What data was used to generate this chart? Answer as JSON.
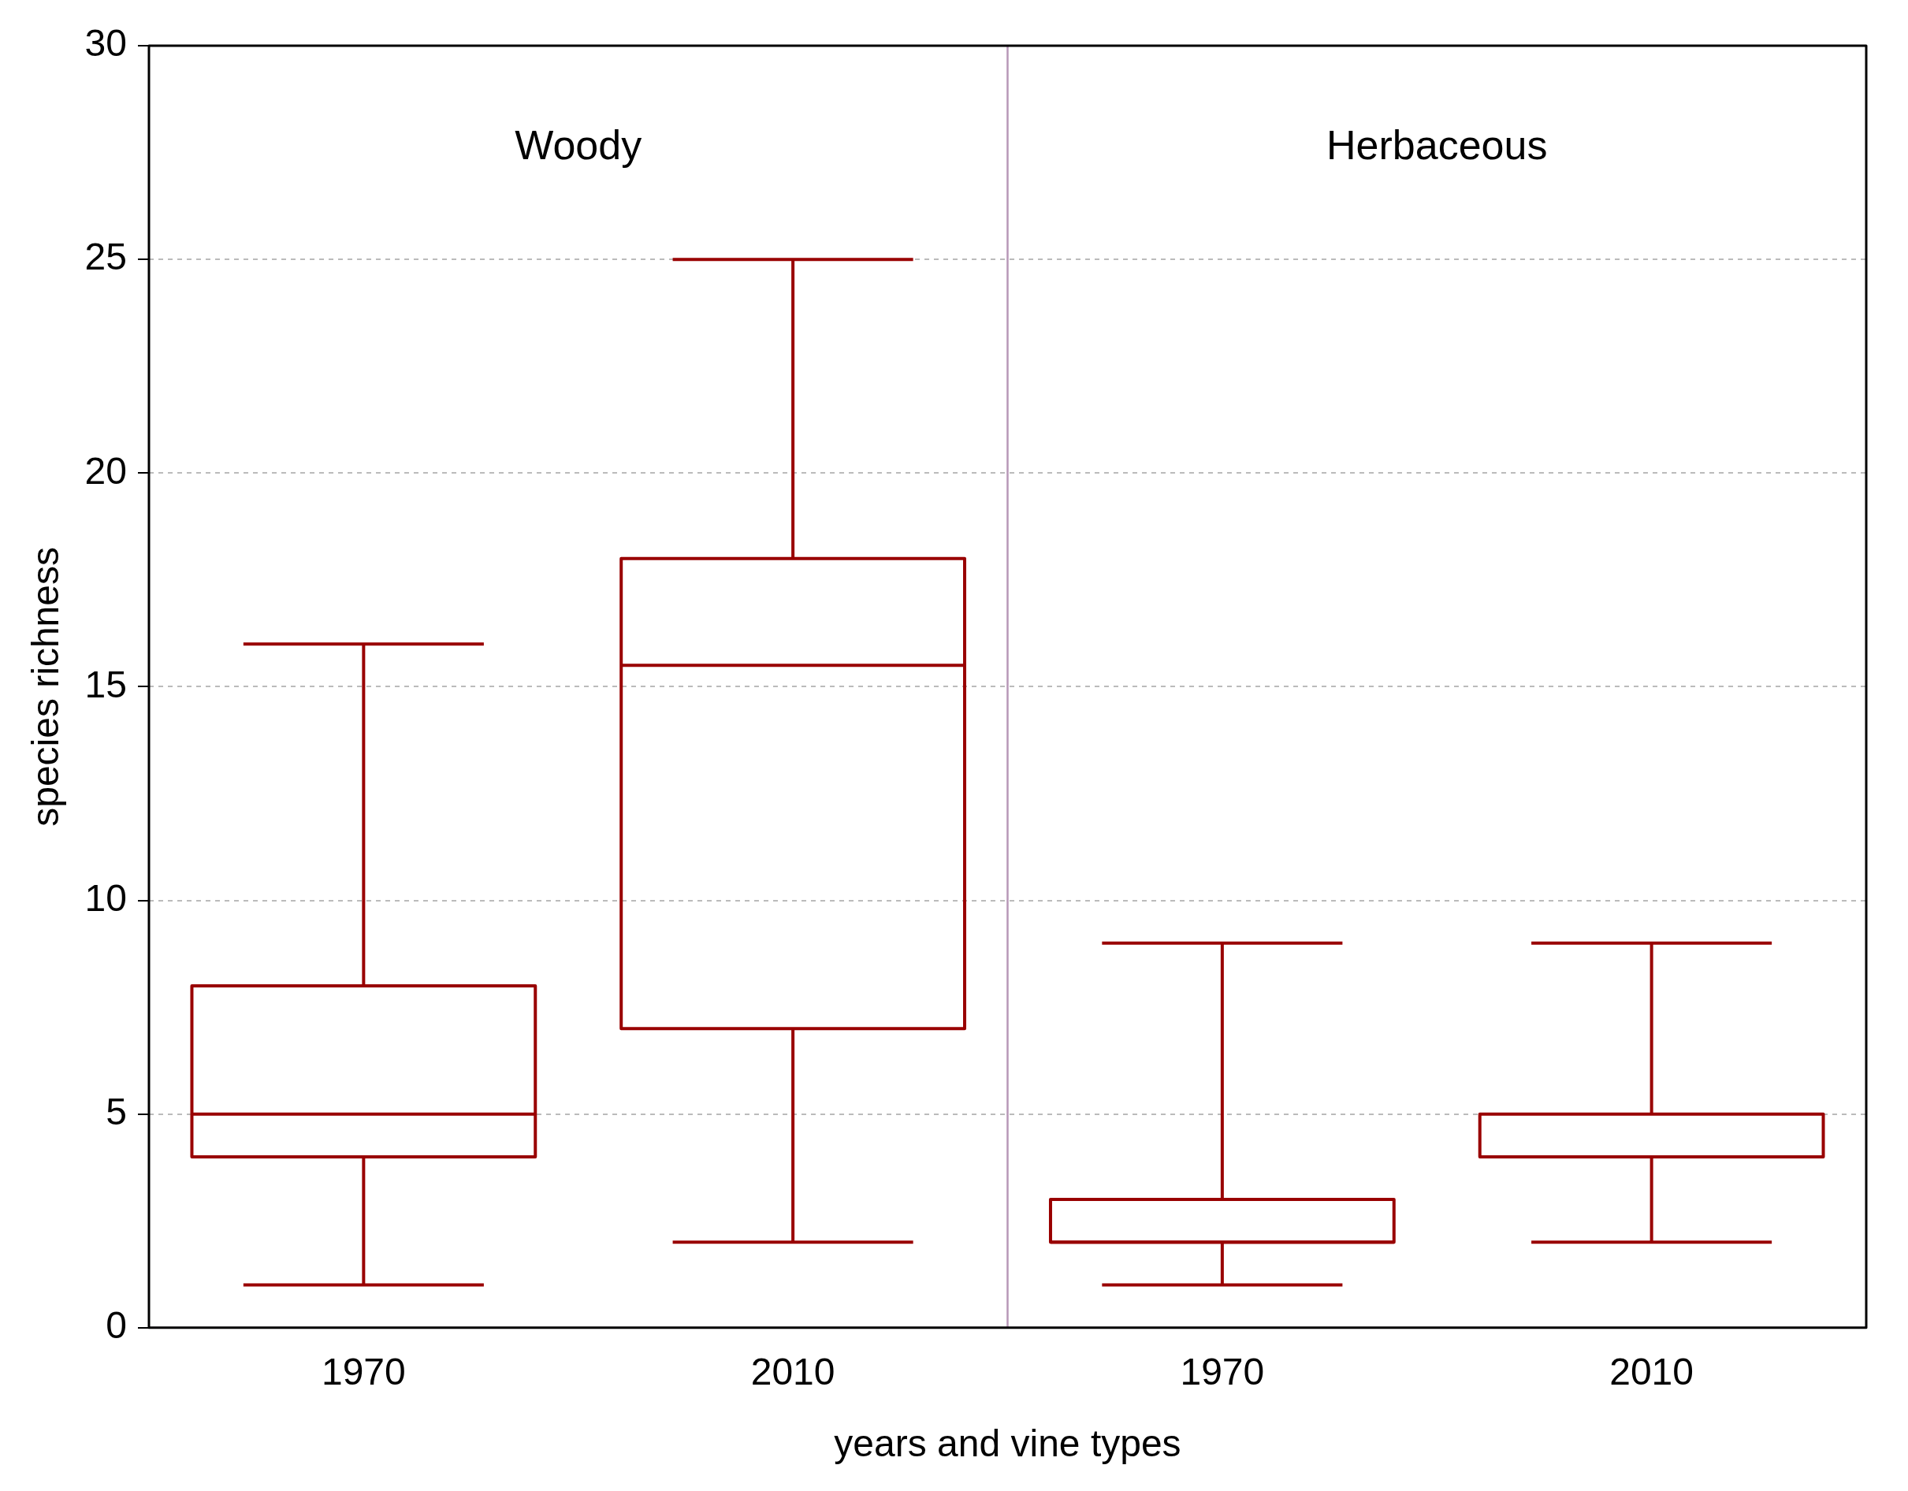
{
  "chart_data": {
    "type": "box",
    "xlabel": "years and vine types",
    "ylabel": "species richness",
    "categories": [
      "1970",
      "2010",
      "1970",
      "2010"
    ],
    "boxes": [
      {
        "low": 1,
        "q1": 4,
        "median": 5,
        "q3": 8,
        "high": 16
      },
      {
        "low": 2,
        "q1": 7,
        "median": 15.5,
        "q3": 18,
        "high": 25
      },
      {
        "low": 1,
        "q1": 2,
        "median": 2,
        "q3": 3,
        "high": 9
      },
      {
        "low": 2,
        "q1": 4,
        "median": 4,
        "q3": 5,
        "high": 9
      }
    ],
    "color": "#990000",
    "ylim": [
      0,
      30
    ],
    "yticks": [
      0,
      5,
      10,
      15,
      20,
      25,
      30
    ],
    "grid": "y",
    "annotations": [
      "Woody",
      "Herbaceous"
    ]
  }
}
